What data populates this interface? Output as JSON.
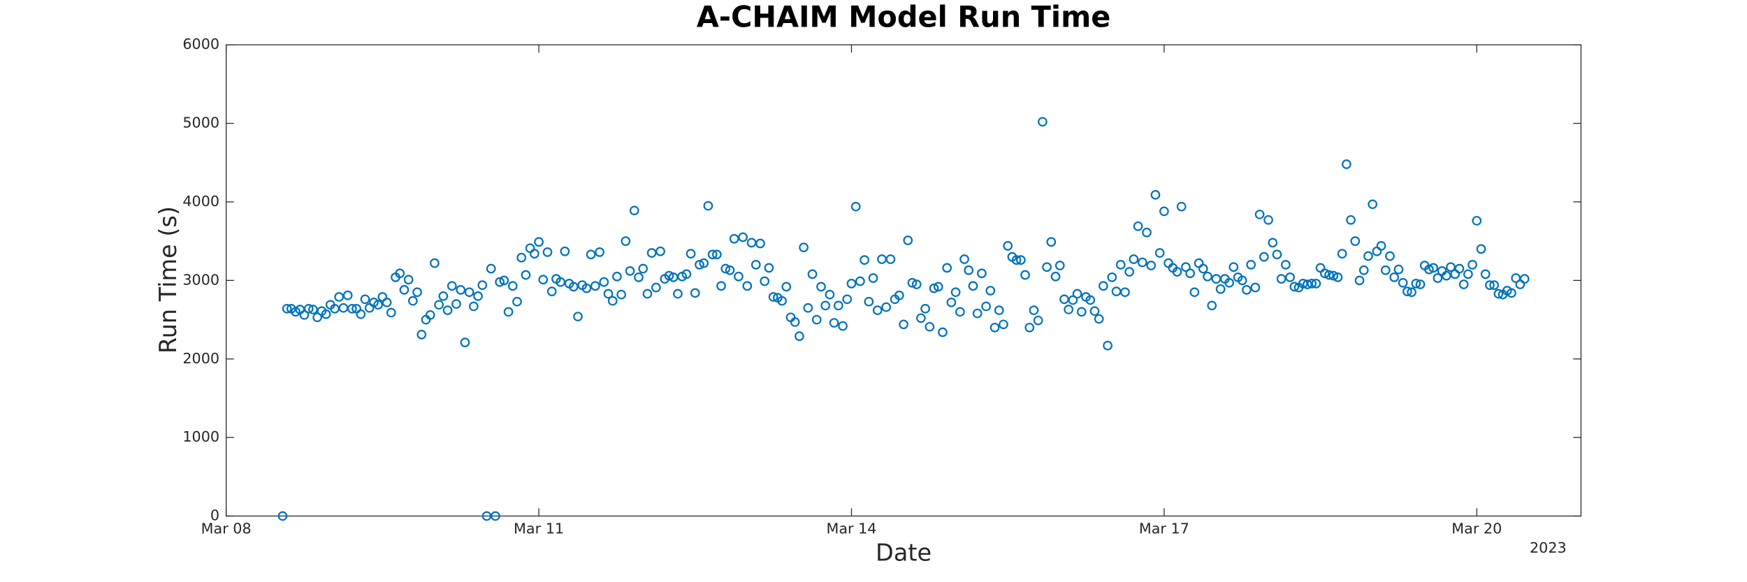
{
  "chart_data": {
    "type": "scatter",
    "title": "A-CHAIM Model Run Time",
    "x_label": "Date",
    "y_label": "Run Time (s)",
    "year_label": "2023",
    "color": "#0072BD",
    "xlim": [
      0,
      312
    ],
    "xticks": [
      {
        "value": 0,
        "label": "Mar 08"
      },
      {
        "value": 72,
        "label": "Mar 11"
      },
      {
        "value": 144,
        "label": "Mar 14"
      },
      {
        "value": 216,
        "label": "Mar 17"
      },
      {
        "value": 288,
        "label": "Mar 20"
      }
    ],
    "ylim": [
      0,
      6000
    ],
    "yticks": [
      0,
      1000,
      2000,
      3000,
      4000,
      5000,
      6000
    ],
    "x": [
      13,
      14,
      15,
      16,
      17,
      18,
      19,
      20,
      21,
      22,
      23,
      24,
      25,
      26,
      27,
      28,
      29,
      30,
      31,
      32,
      33,
      34,
      35,
      36,
      37,
      38,
      39,
      40,
      41,
      42,
      43,
      44,
      45,
      46,
      47,
      48,
      49,
      50,
      51,
      52,
      53,
      54,
      55,
      56,
      57,
      58,
      59,
      60,
      61,
      62,
      63,
      64,
      65,
      66,
      67,
      68,
      69,
      70,
      71,
      72,
      73,
      74,
      75,
      76,
      77,
      78,
      79,
      80,
      81,
      82,
      83,
      84,
      85,
      86,
      87,
      88,
      89,
      90,
      91,
      92,
      93,
      94,
      95,
      96,
      97,
      98,
      99,
      100,
      101,
      102,
      103,
      104,
      105,
      106,
      107,
      108,
      109,
      110,
      111,
      112,
      113,
      114,
      115,
      116,
      117,
      118,
      119,
      120,
      121,
      122,
      123,
      124,
      125,
      126,
      127,
      128,
      129,
      130,
      131,
      132,
      133,
      134,
      135,
      136,
      137,
      138,
      139,
      140,
      141,
      142,
      143,
      144,
      145,
      146,
      147,
      148,
      149,
      150,
      151,
      152,
      153,
      154,
      155,
      156,
      157,
      158,
      159,
      160,
      161,
      162,
      163,
      164,
      165,
      166,
      167,
      168,
      169,
      170,
      171,
      172,
      173,
      174,
      175,
      176,
      177,
      178,
      179,
      180,
      181,
      182,
      183,
      184,
      185,
      186,
      187,
      188,
      189,
      190,
      191,
      192,
      193,
      194,
      195,
      196,
      197,
      198,
      199,
      200,
      201,
      202,
      203,
      204,
      205,
      206,
      207,
      208,
      209,
      210,
      211,
      212,
      213,
      214,
      215,
      216,
      217,
      218,
      219,
      220,
      221,
      222,
      223,
      224,
      225,
      226,
      227,
      228,
      229,
      230,
      231,
      232,
      233,
      234,
      235,
      236,
      237,
      238,
      239,
      240,
      241,
      242,
      243,
      244,
      245,
      246,
      247,
      248,
      249,
      250,
      251,
      252,
      253,
      254,
      255,
      256,
      257,
      258,
      259,
      260,
      261,
      262,
      263,
      264,
      265,
      266,
      267,
      268,
      269,
      270,
      271,
      272,
      273,
      274,
      275,
      276,
      277,
      278,
      279,
      280,
      281,
      282,
      283,
      284,
      285,
      286,
      287,
      288,
      289,
      290,
      291,
      292,
      293,
      294,
      295,
      296,
      297,
      298,
      299
    ],
    "values": [
      0,
      2640,
      2640,
      2600,
      2630,
      2560,
      2640,
      2630,
      2530,
      2610,
      2570,
      2690,
      2640,
      2790,
      2650,
      2810,
      2640,
      2640,
      2570,
      2760,
      2650,
      2720,
      2690,
      2790,
      2720,
      2590,
      3040,
      3090,
      2880,
      3010,
      2740,
      2850,
      2310,
      2500,
      2560,
      3220,
      2690,
      2800,
      2620,
      2930,
      2700,
      2880,
      2210,
      2850,
      2670,
      2800,
      2940,
      0,
      3150,
      0,
      2980,
      3000,
      2600,
      2930,
      2730,
      3290,
      3070,
      3410,
      3340,
      3490,
      3010,
      3360,
      2860,
      3020,
      2980,
      3370,
      2960,
      2920,
      2540,
      2940,
      2900,
      3330,
      2930,
      3360,
      2980,
      2830,
      2740,
      3050,
      2820,
      3500,
      3120,
      3890,
      3040,
      3150,
      2830,
      3350,
      2910,
      3370,
      3020,
      3060,
      3040,
      2830,
      3050,
      3080,
      3340,
      2840,
      3200,
      3220,
      3950,
      3330,
      3330,
      2930,
      3150,
      3130,
      3530,
      3050,
      3550,
      2930,
      3480,
      3200,
      3470,
      2990,
      3160,
      2790,
      2780,
      2740,
      2920,
      2530,
      2470,
      2290,
      3420,
      2650,
      3080,
      2500,
      2920,
      2680,
      2820,
      2460,
      2680,
      2420,
      2760,
      2960,
      3940,
      2990,
      3260,
      2730,
      3030,
      2620,
      3270,
      2660,
      3270,
      2760,
      2810,
      2440,
      3510,
      2970,
      2950,
      2520,
      2640,
      2410,
      2900,
      2920,
      2340,
      3160,
      2720,
      2850,
      2600,
      3270,
      3130,
      2930,
      2580,
      3090,
      2670,
      2870,
      2400,
      2620,
      2440,
      3440,
      3300,
      3260,
      3260,
      3070,
      2400,
      2620,
      2490,
      5020,
      3170,
      3490,
      3050,
      3190,
      2760,
      2630,
      2750,
      2830,
      2600,
      2790,
      2750,
      2610,
      2510,
      2930,
      2170,
      3040,
      2860,
      3200,
      2850,
      3110,
      3270,
      3690,
      3230,
      3610,
      3190,
      4090,
      3350,
      3880,
      3220,
      3160,
      3110,
      3940,
      3170,
      3090,
      2850,
      3220,
      3150,
      3050,
      2680,
      3020,
      2890,
      3020,
      2970,
      3170,
      3040,
      3000,
      2880,
      3200,
      2910,
      3840,
      3300,
      3770,
      3480,
      3330,
      3020,
      3200,
      3040,
      2920,
      2910,
      2960,
      2950,
      2960,
      2960,
      3160,
      3090,
      3070,
      3060,
      3040,
      3340,
      4480,
      3770,
      3500,
      3000,
      3130,
      3310,
      3970,
      3370,
      3440,
      3130,
      3310,
      3040,
      3140,
      2970,
      2860,
      2850,
      2960,
      2950,
      3190,
      3140,
      3160,
      3030,
      3120,
      3060,
      3170,
      3080,
      3150,
      2950,
      3080,
      3200,
      3760,
      3400,
      3080,
      2940,
      2940,
      2830,
      2820,
      2870,
      2840,
      3030,
      2950,
      3020
    ]
  }
}
